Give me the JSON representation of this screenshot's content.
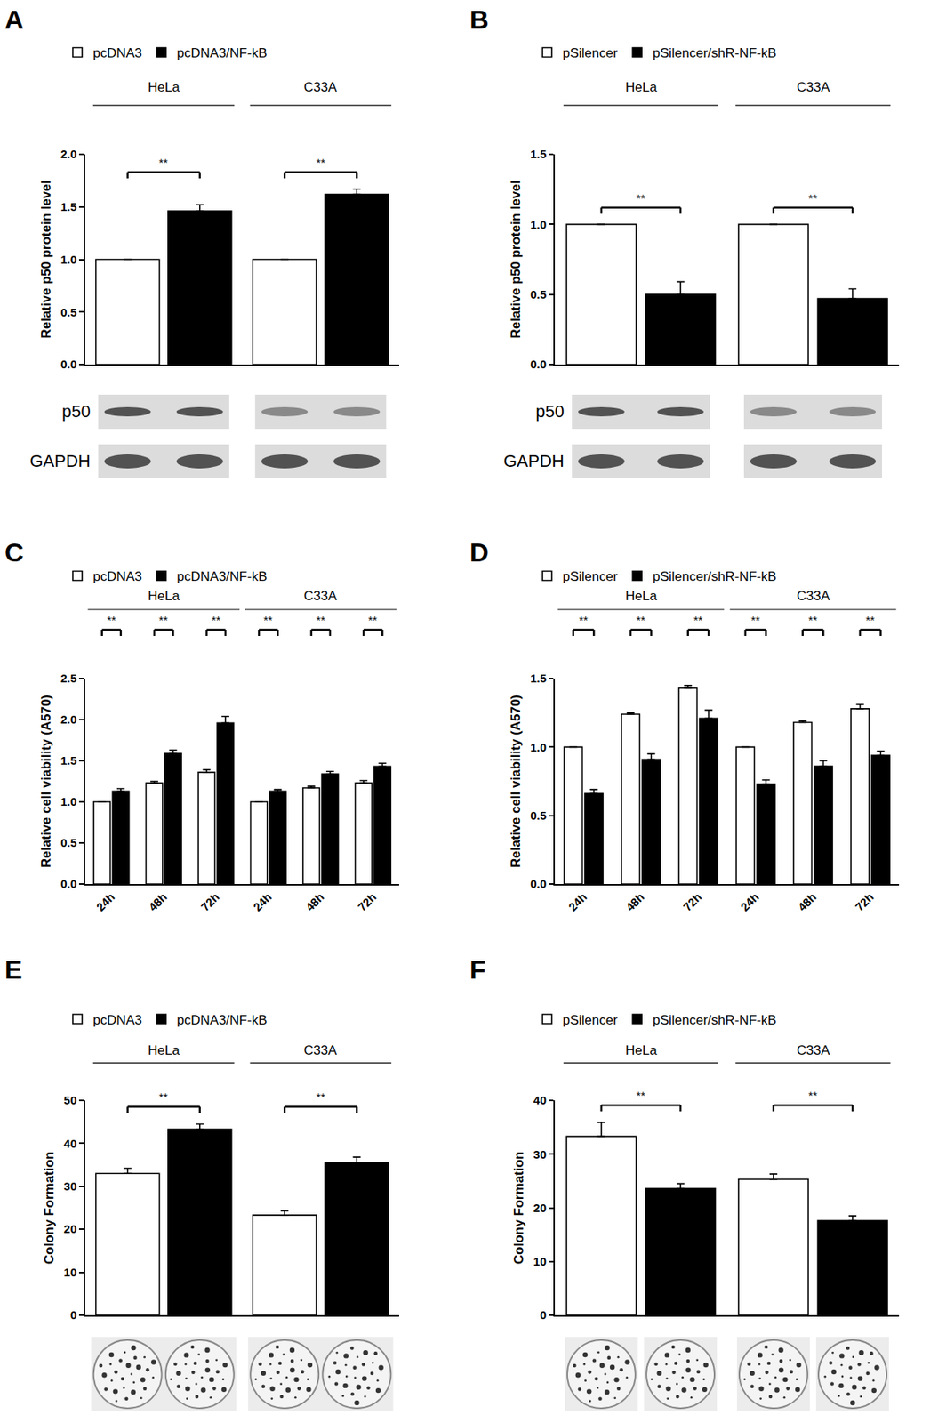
{
  "chart_data": [
    {
      "panel": "A",
      "type": "bar",
      "groups": [
        "HeLa",
        "C33A"
      ],
      "categories": [
        null,
        null
      ],
      "tick_labels": "y",
      "series": [
        {
          "name": "pcDNA3",
          "color": "#ffffff",
          "values": [
            1.0,
            1.0
          ],
          "errors": [
            0,
            0
          ]
        },
        {
          "name": "pcDNA3/NF-kB",
          "color": "#000000",
          "values": [
            1.46,
            1.62
          ],
          "errors": [
            0.06,
            0.05
          ]
        }
      ],
      "significance": [
        "**",
        "**"
      ],
      "y_label": "Relative p50 protein level",
      "ylim": [
        0,
        2.0
      ],
      "yticks": [
        {
          "value": 0,
          "label": "0.0"
        },
        0.5,
        {
          "value": 1,
          "label": "1.0"
        },
        1.5,
        {
          "value": 2,
          "label": "2.0"
        }
      ],
      "grid": false,
      "blot_labels": [
        "p50",
        "GAPDH"
      ]
    },
    {
      "panel": "B",
      "type": "bar",
      "groups": [
        "HeLa",
        "C33A"
      ],
      "categories": [
        null,
        null
      ],
      "tick_labels": "y",
      "series": [
        {
          "name": "pSilencer",
          "color": "#ffffff",
          "values": [
            1.0,
            1.0
          ],
          "errors": [
            0,
            0
          ]
        },
        {
          "name": "pSilencer/shR-NF-kB",
          "color": "#000000",
          "values": [
            0.5,
            0.47
          ],
          "errors": [
            0.09,
            0.07
          ]
        }
      ],
      "significance": [
        "**",
        "**"
      ],
      "y_label": "Relative p50 protein level",
      "ylim": [
        0,
        1.5
      ],
      "yticks": [
        {
          "value": 0,
          "label": "0.0"
        },
        0.5,
        {
          "value": 1,
          "label": "1.0"
        },
        1.5
      ],
      "grid": false,
      "blot_labels": [
        "p50",
        "GAPDH"
      ]
    },
    {
      "panel": "C",
      "type": "bar",
      "groups": [
        "HeLa",
        "C33A"
      ],
      "categories": [
        "24h",
        "48h",
        "72h",
        "24h",
        "48h",
        "72h"
      ],
      "series": [
        {
          "name": "pcDNA3",
          "color": "#ffffff",
          "values": [
            1.0,
            1.23,
            1.36,
            1.0,
            1.17,
            1.23
          ],
          "errors": [
            0,
            0.02,
            0.03,
            0,
            0.02,
            0.03
          ]
        },
        {
          "name": "pcDNA3/NF-kB",
          "color": "#000000",
          "values": [
            1.13,
            1.59,
            1.96,
            1.13,
            1.34,
            1.43
          ],
          "errors": [
            0.03,
            0.04,
            0.08,
            0.02,
            0.03,
            0.04
          ]
        }
      ],
      "significance": [
        "**",
        "**",
        "**",
        "**",
        "**",
        "**"
      ],
      "y_label": "Relative cell viability (A570)",
      "ylim": [
        0,
        2.5
      ],
      "yticks": [
        {
          "value": 0,
          "label": "0.0"
        },
        0.5,
        {
          "value": 1,
          "label": "1.0"
        },
        1.5,
        {
          "value": 2,
          "label": "2.0"
        },
        2.5
      ],
      "grid": false
    },
    {
      "panel": "D",
      "type": "bar",
      "groups": [
        "HeLa",
        "C33A"
      ],
      "categories": [
        "24h",
        "48h",
        "72h",
        "24h",
        "48h",
        "72h"
      ],
      "series": [
        {
          "name": "pSilencer",
          "color": "#ffffff",
          "values": [
            1.0,
            1.24,
            1.43,
            1.0,
            1.18,
            1.28
          ],
          "errors": [
            0,
            0.01,
            0.02,
            0,
            0.01,
            0.03
          ]
        },
        {
          "name": "pSilencer/shR-NF-kB",
          "color": "#000000",
          "values": [
            0.66,
            0.91,
            1.21,
            0.73,
            0.86,
            0.94
          ],
          "errors": [
            0.03,
            0.04,
            0.06,
            0.03,
            0.04,
            0.03
          ]
        }
      ],
      "significance": [
        "**",
        "**",
        "**",
        "**",
        "**",
        "**"
      ],
      "y_label": "Relative cell viability (A570)",
      "ylim": [
        0,
        1.5
      ],
      "yticks": [
        {
          "value": 0,
          "label": "0.0"
        },
        0.5,
        {
          "value": 1,
          "label": "1.0"
        },
        1.5
      ],
      "grid": false
    },
    {
      "panel": "E",
      "type": "bar",
      "groups": [
        "HeLa",
        "C33A"
      ],
      "categories": [
        null,
        null
      ],
      "tick_labels": "y",
      "series": [
        {
          "name": "pcDNA3",
          "color": "#ffffff",
          "values": [
            33.0,
            23.3
          ],
          "errors": [
            1.2,
            1.0
          ]
        },
        {
          "name": "pcDNA3/NF-kB",
          "color": "#000000",
          "values": [
            43.3,
            35.5
          ],
          "errors": [
            1.2,
            1.3
          ]
        }
      ],
      "significance": [
        "**",
        "**"
      ],
      "y_label": "Colony Formation",
      "ylim": [
        0,
        50
      ],
      "yticks": [
        0,
        10,
        20,
        30,
        40,
        50
      ],
      "grid": false
    },
    {
      "panel": "F",
      "type": "bar",
      "groups": [
        "HeLa",
        "C33A"
      ],
      "categories": [
        null,
        null
      ],
      "tick_labels": "y",
      "series": [
        {
          "name": "pSilencer",
          "color": "#ffffff",
          "values": [
            33.3,
            25.3
          ],
          "errors": [
            2.6,
            1.0
          ]
        },
        {
          "name": "pSilencer/shR-NF-kB",
          "color": "#000000",
          "values": [
            23.6,
            17.6
          ],
          "errors": [
            0.9,
            0.9
          ]
        }
      ],
      "significance": [
        "**",
        "**"
      ],
      "y_label": "Colony Formation",
      "ylim": [
        0,
        40
      ],
      "yticks": [
        0,
        10,
        20,
        30,
        40
      ],
      "grid": false
    }
  ]
}
